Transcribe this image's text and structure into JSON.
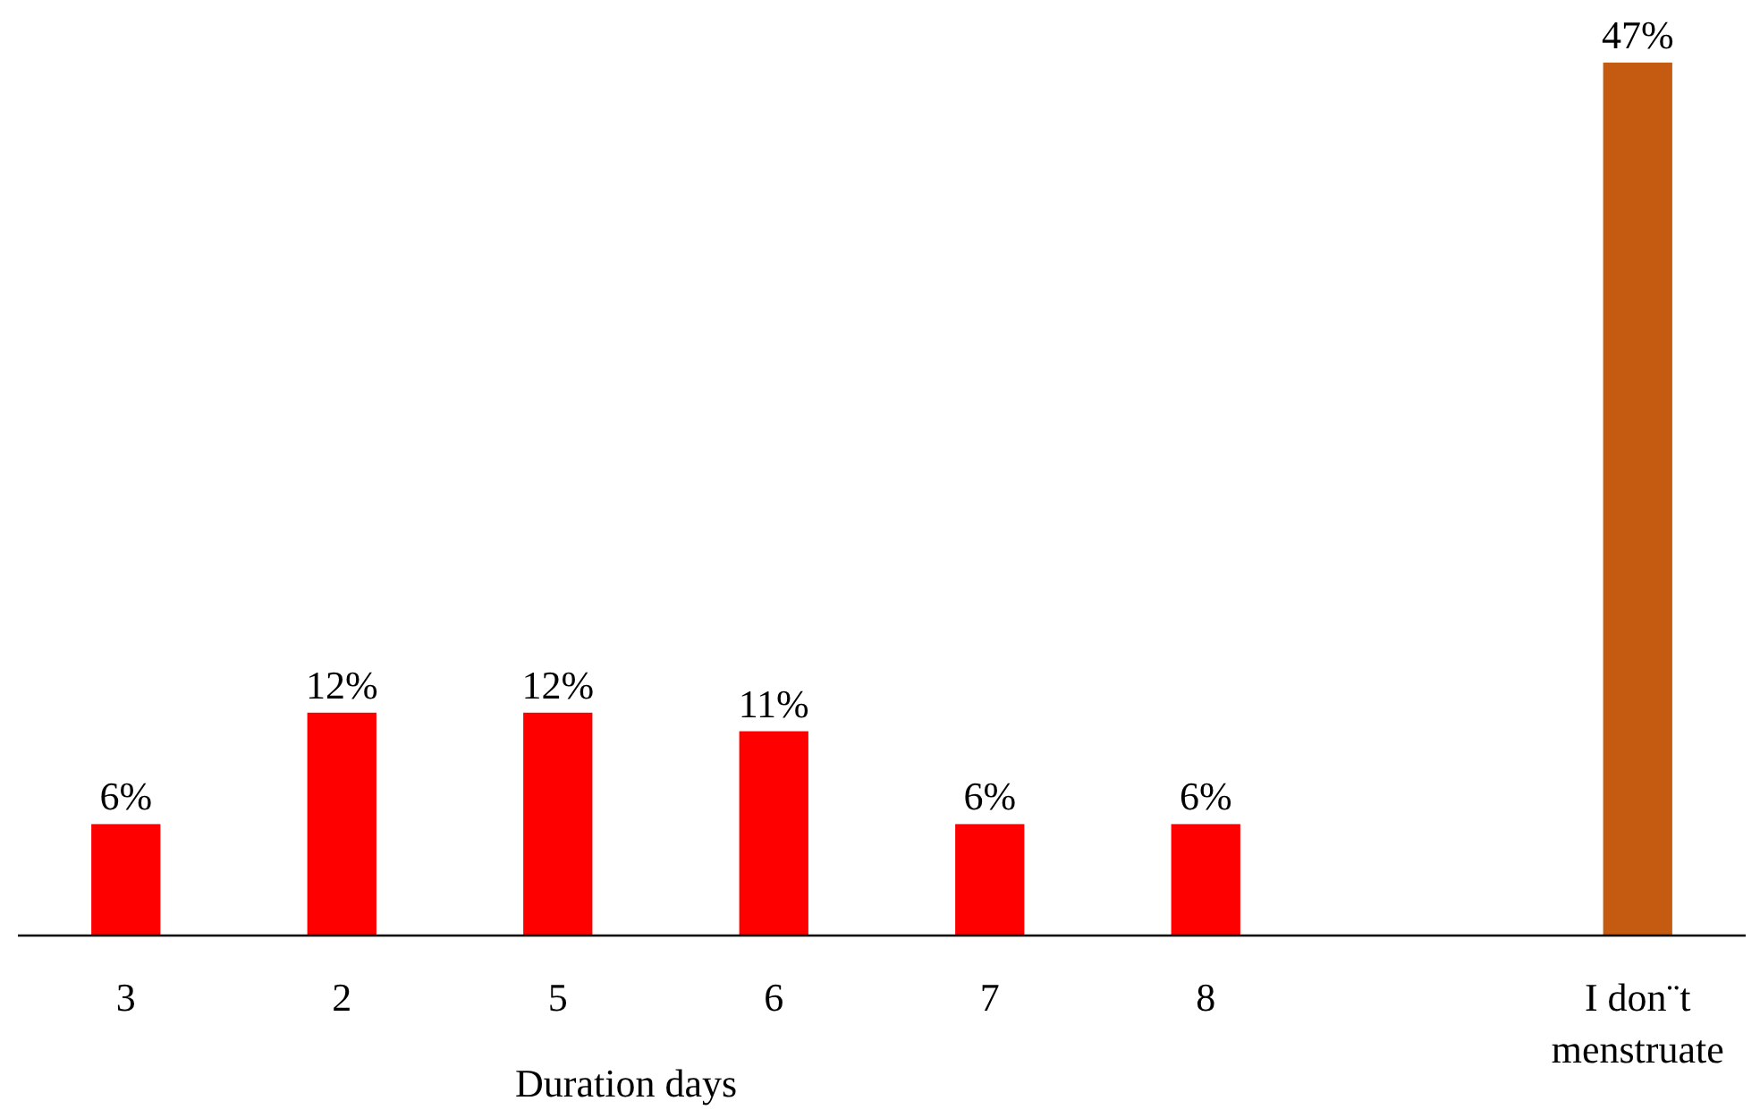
{
  "chart_data": {
    "type": "bar",
    "xlabel": "Duration days",
    "categories": [
      "3",
      "2",
      "5",
      "6",
      "7",
      "8",
      null,
      "I don¨t menstruate"
    ],
    "values": [
      6,
      12,
      12,
      11,
      6,
      6,
      null,
      47
    ],
    "colors": [
      "#ff0000",
      "#ff0000",
      "#ff0000",
      "#ff0000",
      "#ff0000",
      "#ff0000",
      null,
      "#c55a11"
    ],
    "value_labels": [
      "6%",
      "12%",
      "12%",
      "11%",
      "6%",
      "6%",
      null,
      "47%"
    ]
  }
}
